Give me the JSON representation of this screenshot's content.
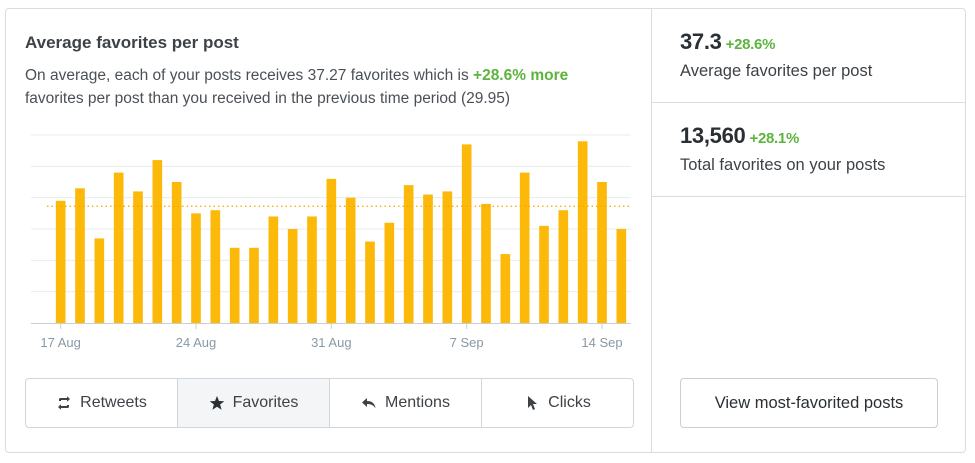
{
  "panel": {
    "title": "Average favorites per post",
    "desc_prefix": "On average, each of your posts receives 37.27 favorites which is ",
    "desc_highlight": "+28.6% more",
    "desc_suffix": " favorites per post than you received in the previous time period (29.95)"
  },
  "chart_data": {
    "type": "bar",
    "title": "",
    "xlabel": "",
    "ylabel": "",
    "ylim": [
      0,
      60
    ],
    "grid": true,
    "average_line": 37.27,
    "categories": [
      "17 Aug",
      "18 Aug",
      "19 Aug",
      "20 Aug",
      "21 Aug",
      "22 Aug",
      "23 Aug",
      "24 Aug",
      "25 Aug",
      "26 Aug",
      "27 Aug",
      "28 Aug",
      "29 Aug",
      "30 Aug",
      "31 Aug",
      "1 Sep",
      "2 Sep",
      "3 Sep",
      "4 Sep",
      "5 Sep",
      "6 Sep",
      "7 Sep",
      "8 Sep",
      "9 Sep",
      "10 Sep",
      "11 Sep",
      "12 Sep",
      "13 Sep",
      "14 Sep",
      "15 Sep"
    ],
    "values": [
      39,
      43,
      27,
      48,
      42,
      52,
      45,
      35,
      36,
      24,
      24,
      34,
      30,
      34,
      46,
      40,
      26,
      32,
      44,
      41,
      42,
      57,
      38,
      22,
      48,
      31,
      36,
      58,
      45,
      30
    ],
    "tick_labels": [
      "17 Aug",
      "24 Aug",
      "31 Aug",
      "7 Sep",
      "14 Sep"
    ],
    "tick_indices": [
      0,
      7,
      14,
      21,
      28
    ],
    "colors": {
      "bar": "#fdb909",
      "avg_line": "#f0a800",
      "grid": "#e8ebed",
      "axis": "#c8cfd5"
    }
  },
  "tabs": [
    {
      "label": "Retweets",
      "icon": "retweet-icon",
      "active": false
    },
    {
      "label": "Favorites",
      "icon": "star-icon",
      "active": true
    },
    {
      "label": "Mentions",
      "icon": "reply-icon",
      "active": false
    },
    {
      "label": "Clicks",
      "icon": "cursor-icon",
      "active": false
    }
  ],
  "stats": [
    {
      "value": "37.3",
      "change": "+28.6%",
      "label": "Average favorites per post"
    },
    {
      "value": "13,560",
      "change": "+28.1%",
      "label": "Total favorites on your posts"
    }
  ],
  "view_button": "View most-favorited posts"
}
